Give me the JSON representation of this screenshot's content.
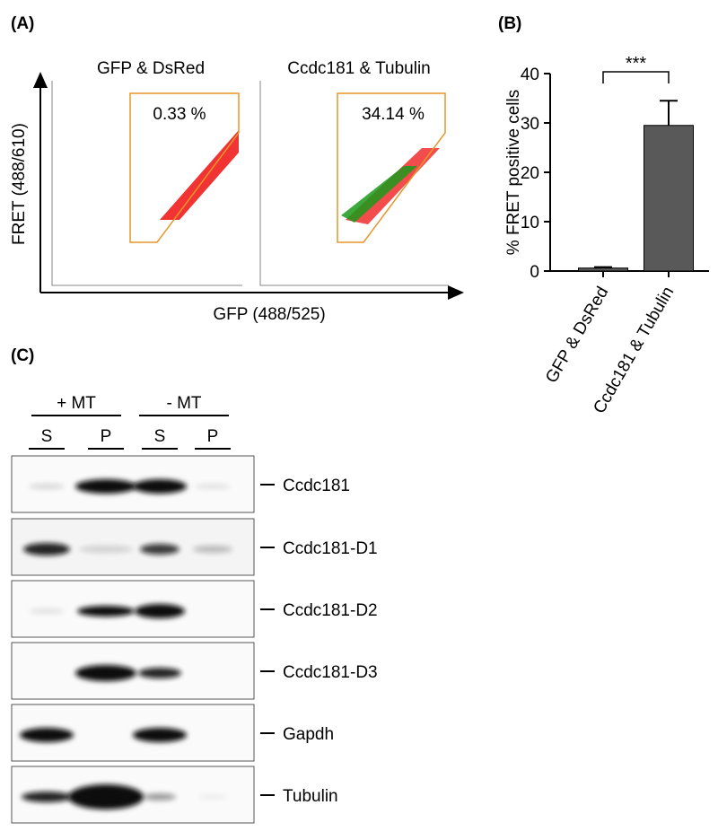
{
  "panel_a": {
    "label": "(A)",
    "y_label": "FRET (488/610)",
    "x_label": "GFP (488/525)",
    "plots": [
      {
        "title": "GFP & DsRed",
        "gate_text": "0.33 %"
      },
      {
        "title": "Ccdc181 & Tubulin",
        "gate_text": "34.14 %"
      }
    ]
  },
  "chart_data": {
    "type": "bar",
    "panel_label": "(B)",
    "ylabel": "% FRET positive cells",
    "categories": [
      "GFP & DsRed",
      "Ccdc181 & Tubulin"
    ],
    "values": [
      0.6,
      29.5
    ],
    "errors": [
      0.2,
      5
    ],
    "color": "#595959",
    "ylim": [
      0,
      40
    ],
    "yticks": [
      0,
      10,
      20,
      30,
      40
    ],
    "annotation": "***"
  },
  "panel_c": {
    "label": "(C)",
    "groups": [
      "+ MT",
      "- MT"
    ],
    "lanes": [
      "S",
      "P",
      "S",
      "P"
    ],
    "bands": [
      "Ccdc181",
      "Ccdc181-D1",
      "Ccdc181-D2",
      "Ccdc181-D3",
      "Gapdh",
      "Tubulin"
    ]
  }
}
